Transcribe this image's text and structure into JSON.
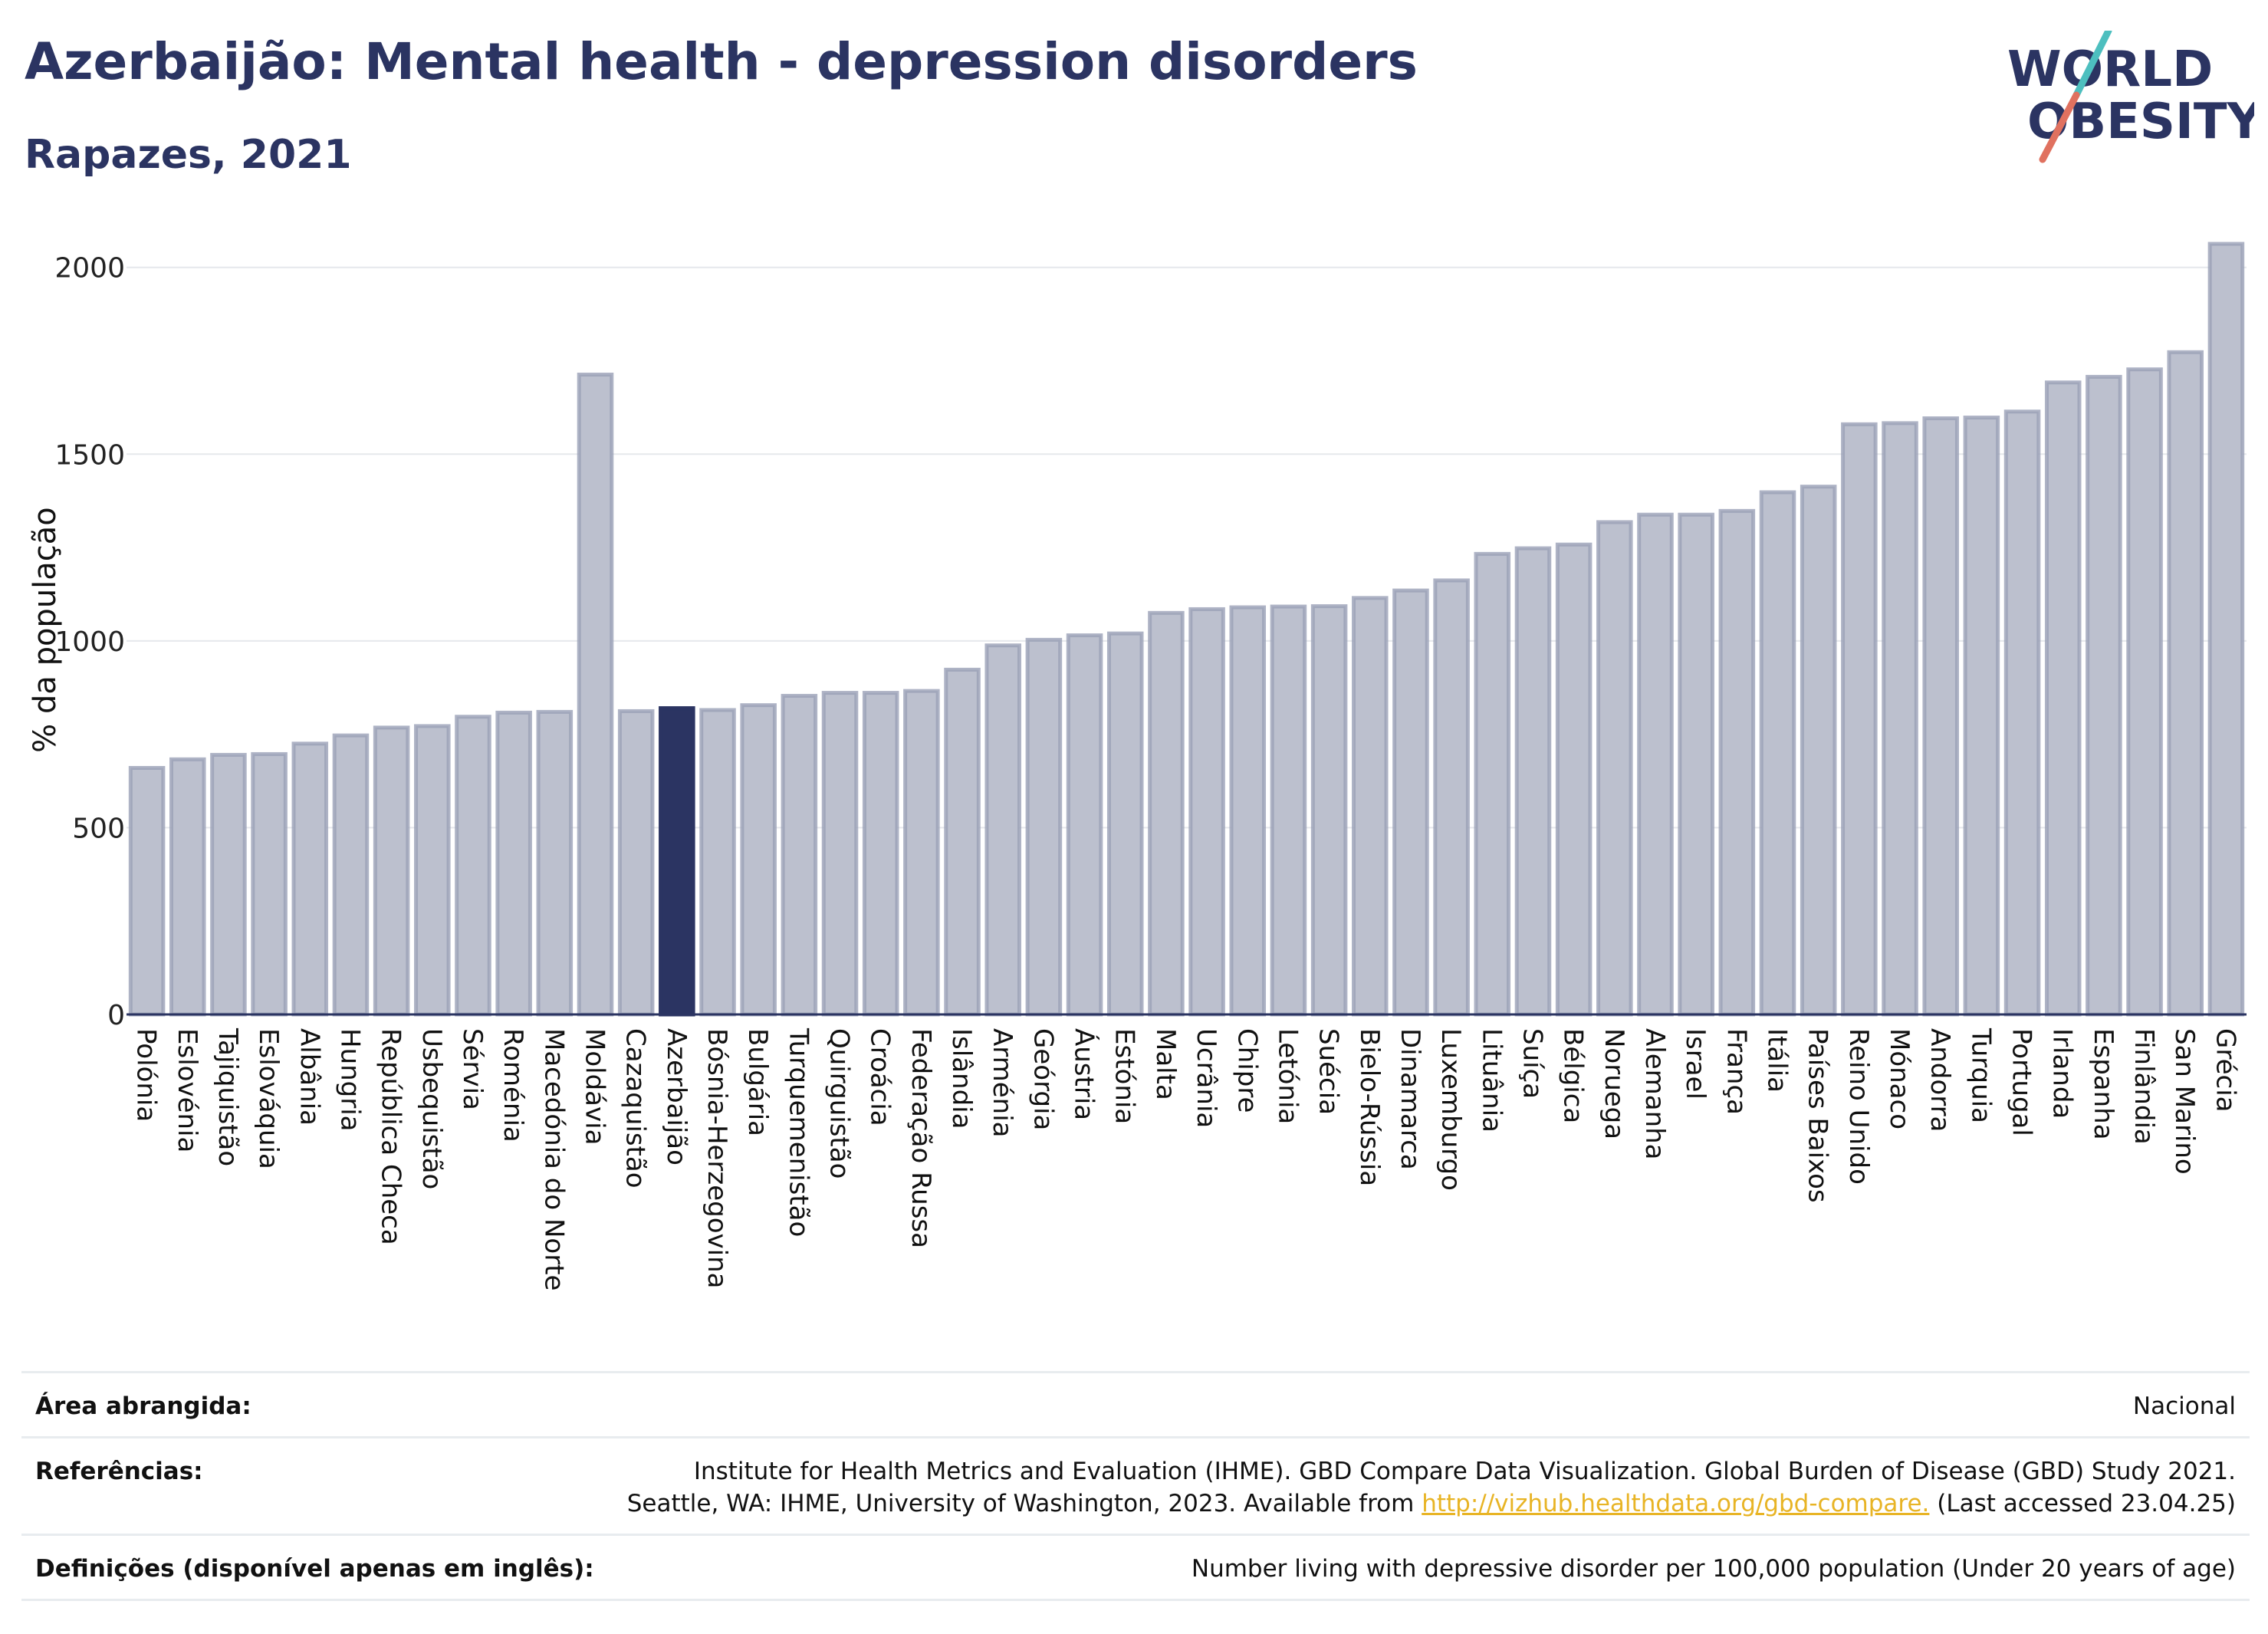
{
  "header": {
    "title": "Azerbaijão: Mental health - depression disorders",
    "subtitle": "Rapazes, 2021"
  },
  "logo": {
    "line1": "WORLD",
    "line2": "OBESITY"
  },
  "colors": {
    "highlight": "#2b3462",
    "bar": "#bcc0ce",
    "bar_stroke": "#9aa0b6",
    "text": "#2b3462",
    "accent_teal": "#4dbfbf",
    "accent_red": "#e0715f"
  },
  "chart_data": {
    "type": "bar",
    "ylabel": "% da população",
    "ylim": [
      0,
      2100
    ],
    "yticks": [
      0,
      500,
      1000,
      1500,
      2000
    ],
    "grid": true,
    "highlight": "Azerbaijão",
    "categories": [
      "Polónia",
      "Eslovénia",
      "Tajiquistão",
      "Eslováquia",
      "Albânia",
      "Hungria",
      "República Checa",
      "Usbequistão",
      "Sérvia",
      "Roménia",
      "Macedónia do Norte",
      "Moldávia",
      "Cazaquistão",
      "Azerbaijão",
      "Bósnia-Herzegovina",
      "Bulgária",
      "Turquemenistão",
      "Quirguistão",
      "Croácia",
      "Federação Russa",
      "Islândia",
      "Arménia",
      "Geórgia",
      "Áustria",
      "Estónia",
      "Malta",
      "Ucrânia",
      "Chipre",
      "Letónia",
      "Suécia",
      "Bielo-Rússia",
      "Dinamarca",
      "Luxemburgo",
      "Lituânia",
      "Suíça",
      "Bélgica",
      "Noruega",
      "Alemanha",
      "Israel",
      "França",
      "Itália",
      "Países Baixos",
      "Reino Unido",
      "Mónaco",
      "Andorra",
      "Turquia",
      "Portugal",
      "Irlanda",
      "Espanha",
      "Finlândia",
      "San Marino",
      "Grécia"
    ],
    "values": [
      660,
      683,
      695,
      697,
      725,
      747,
      768,
      772,
      797,
      808,
      810,
      1713,
      812,
      820,
      815,
      828,
      853,
      861,
      861,
      866,
      923,
      988,
      1003,
      1015,
      1020,
      1075,
      1085,
      1090,
      1092,
      1093,
      1115,
      1135,
      1162,
      1233,
      1248,
      1258,
      1318,
      1338,
      1338,
      1348,
      1398,
      1413,
      1580,
      1583,
      1596,
      1598,
      1614,
      1692,
      1707,
      1727,
      1773,
      2063
    ]
  },
  "footer": {
    "area_label": "Área abrangida:",
    "area_value": "Nacional",
    "refs_label": "Referências:",
    "refs_line1": "Institute for Health Metrics and Evaluation (IHME). GBD Compare Data Visualization. Global Burden of Disease (GBD) Study 2021.",
    "refs_line2_pre": "Seattle, WA: IHME, University of Washington, 2023. Available from ",
    "refs_link": "http://vizhub.healthdata.org/gbd-compare.",
    "refs_line2_post": " (Last accessed 23.04.25)",
    "defs_label": "Definições (disponível apenas em inglês):",
    "defs_value": "Number living with depressive disorder per 100,000 population (Under 20 years of age)"
  }
}
